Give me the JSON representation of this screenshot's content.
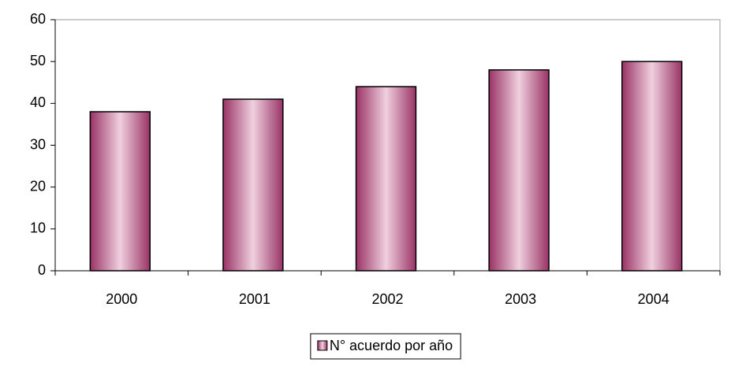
{
  "chart_data": {
    "type": "bar",
    "categories": [
      "2000",
      "2001",
      "2002",
      "2003",
      "2004"
    ],
    "series": [
      {
        "name": "N° acuerdo por año",
        "color": "#993366",
        "values": [
          38,
          41,
          44,
          48,
          50
        ]
      }
    ],
    "ylim": [
      0,
      60
    ],
    "yticks": [
      0,
      10,
      20,
      30,
      40,
      50,
      60
    ],
    "grid": false,
    "legend": "bottom"
  }
}
